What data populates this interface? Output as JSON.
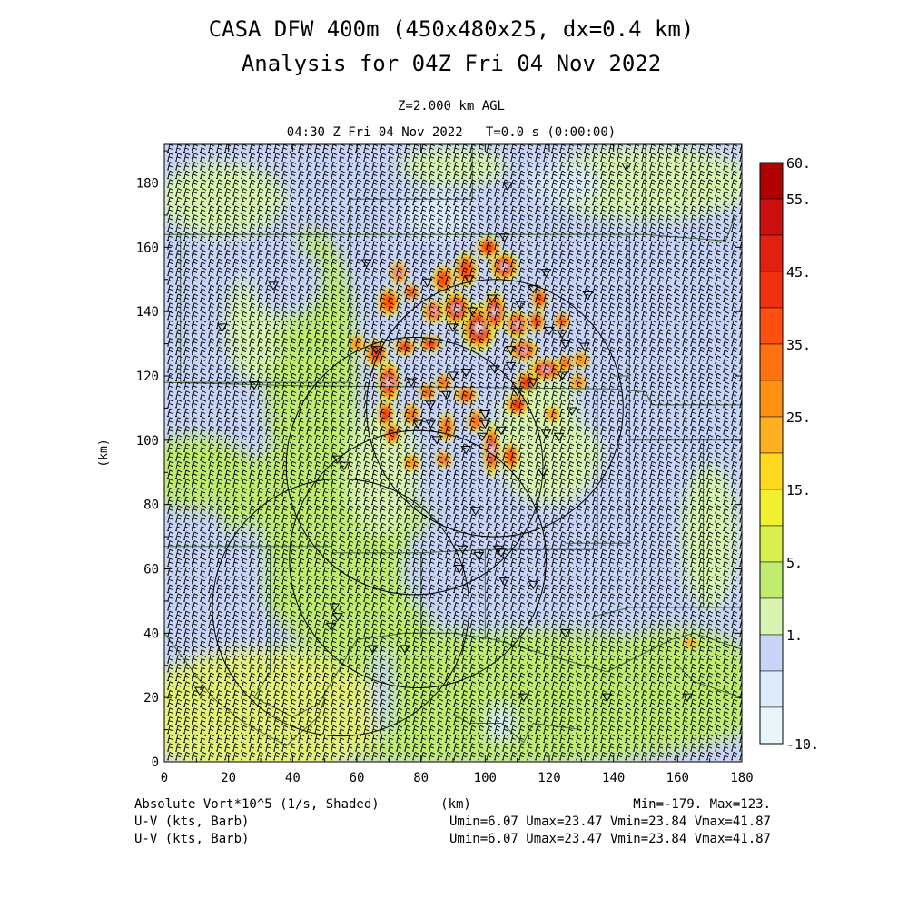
{
  "chart_data": {
    "type": "heatmap",
    "title_line1": "CASA DFW 400m (450x480x25, dx=0.4 km)",
    "title_line2": "Analysis for 04Z Fri 04 Nov 2022",
    "level_label": "Z=2.000 km AGL",
    "time_label": "04:30 Z Fri 04 Nov 2022   T=0.0 s (0:00:00)",
    "xlabel": "(km)",
    "ylabel": "(km)",
    "xlim": [
      0,
      180
    ],
    "ylim": [
      0,
      192
    ],
    "x_ticks": [
      "0",
      "20",
      "40",
      "60",
      "80",
      "100",
      "120",
      "140",
      "160",
      "180"
    ],
    "y_ticks": [
      "0",
      "20",
      "40",
      "60",
      "80",
      "100",
      "120",
      "140",
      "160",
      "180"
    ],
    "colorbar": {
      "labels": [
        "60.",
        "55.",
        "45.",
        "35.",
        "25.",
        "15.",
        "5.",
        "1.",
        "-10."
      ],
      "levels": [
        60,
        55,
        50,
        45,
        40,
        35,
        30,
        25,
        20,
        15,
        10,
        5,
        3,
        1,
        0,
        -10
      ],
      "colors": [
        "#b00000",
        "#cc1010",
        "#e02010",
        "#f03010",
        "#ff5010",
        "#ff7010",
        "#ff9010",
        "#ffb020",
        "#ffd820",
        "#f0f030",
        "#d8f050",
        "#c0ec70",
        "#d8f4b0",
        "#c8d4f8",
        "#dcecfc",
        "#e8f6fc"
      ]
    },
    "field_label": "Absolute Vort*10^5 (1/s, Shaded)",
    "field_range": "Min=-179. Max=123.",
    "vector_label_1": "U-V (kts, Barb)",
    "vector_range_1": "Umin=6.07 Umax=23.47 Vmin=23.84 Vmax=41.87",
    "vector_label_2": "U-V (kts, Barb)",
    "vector_range_2": "Umin=6.07 Umax=23.47 Vmin=23.84 Vmax=41.87",
    "bottom_axis_label": "(km)",
    "radar_rings": [
      {
        "cx": 103,
        "cy": 110,
        "r": 40
      },
      {
        "cx": 78,
        "cy": 92,
        "r": 40
      },
      {
        "cx": 79,
        "cy": 63,
        "r": 40
      },
      {
        "cx": 55,
        "cy": 48,
        "r": 40
      }
    ],
    "stations_xy": [
      [
        18,
        135
      ],
      [
        34,
        148
      ],
      [
        90,
        195
      ],
      [
        107,
        179
      ],
      [
        144,
        185
      ],
      [
        63,
        155
      ],
      [
        106,
        163
      ],
      [
        82,
        149
      ],
      [
        95,
        150
      ],
      [
        96,
        140
      ],
      [
        102,
        144
      ],
      [
        111,
        142
      ],
      [
        119,
        152
      ],
      [
        132,
        145
      ],
      [
        115,
        147
      ],
      [
        124,
        133
      ],
      [
        90,
        135
      ],
      [
        90,
        120
      ],
      [
        94,
        121
      ],
      [
        88,
        114
      ],
      [
        83,
        111
      ],
      [
        77,
        118
      ],
      [
        79,
        105
      ],
      [
        83,
        105
      ],
      [
        100,
        105
      ],
      [
        105,
        103
      ],
      [
        119,
        102
      ],
      [
        127,
        109
      ],
      [
        115,
        118
      ],
      [
        131,
        129
      ],
      [
        124,
        120
      ],
      [
        125,
        130
      ],
      [
        108,
        123
      ],
      [
        123,
        101
      ],
      [
        118,
        90
      ],
      [
        54,
        94
      ],
      [
        56,
        92
      ],
      [
        99,
        101
      ],
      [
        100,
        108
      ],
      [
        85,
        100
      ],
      [
        94,
        97
      ],
      [
        97,
        78
      ],
      [
        93,
        66
      ],
      [
        98,
        64
      ],
      [
        105,
        65
      ],
      [
        92,
        60
      ],
      [
        115,
        55
      ],
      [
        106,
        56
      ],
      [
        125,
        40
      ],
      [
        53,
        48
      ],
      [
        54,
        45
      ],
      [
        52,
        42
      ],
      [
        65,
        35
      ],
      [
        75,
        35
      ],
      [
        28,
        117
      ],
      [
        112,
        20
      ],
      [
        138,
        20
      ],
      [
        163,
        20
      ],
      [
        11,
        22
      ],
      [
        104,
        66
      ],
      [
        103,
        122
      ],
      [
        108,
        128
      ],
      [
        120,
        134
      ],
      [
        66,
        128
      ],
      [
        110,
        115
      ]
    ],
    "vorticity_max": [
      {
        "x": 98,
        "y": 135,
        "v": 60,
        "rx": 5,
        "ry": 7
      },
      {
        "x": 106,
        "y": 154,
        "v": 58,
        "rx": 4,
        "ry": 4
      },
      {
        "x": 101,
        "y": 160,
        "v": 48,
        "rx": 3,
        "ry": 3
      },
      {
        "x": 94,
        "y": 153,
        "v": 42,
        "rx": 3,
        "ry": 5
      },
      {
        "x": 87,
        "y": 150,
        "v": 40,
        "rx": 3,
        "ry": 4
      },
      {
        "x": 73,
        "y": 152,
        "v": 52,
        "rx": 2,
        "ry": 3
      },
      {
        "x": 77,
        "y": 146,
        "v": 45,
        "rx": 2,
        "ry": 2
      },
      {
        "x": 70,
        "y": 143,
        "v": 42,
        "rx": 3,
        "ry": 4
      },
      {
        "x": 84,
        "y": 140,
        "v": 52,
        "rx": 3,
        "ry": 3
      },
      {
        "x": 91,
        "y": 141,
        "v": 56,
        "rx": 4,
        "ry": 5
      },
      {
        "x": 103,
        "y": 140,
        "v": 55,
        "rx": 3,
        "ry": 6
      },
      {
        "x": 110,
        "y": 136,
        "v": 50,
        "rx": 3,
        "ry": 4
      },
      {
        "x": 117,
        "y": 144,
        "v": 48,
        "rx": 2,
        "ry": 3
      },
      {
        "x": 116,
        "y": 137,
        "v": 48,
        "rx": 2,
        "ry": 3
      },
      {
        "x": 124,
        "y": 137,
        "v": 40,
        "rx": 2,
        "ry": 2
      },
      {
        "x": 112,
        "y": 128,
        "v": 50,
        "rx": 4,
        "ry": 3
      },
      {
        "x": 119,
        "y": 122,
        "v": 55,
        "rx": 5,
        "ry": 3
      },
      {
        "x": 113,
        "y": 118,
        "v": 48,
        "rx": 3,
        "ry": 3
      },
      {
        "x": 110,
        "y": 111,
        "v": 48,
        "rx": 3,
        "ry": 3
      },
      {
        "x": 125,
        "y": 124,
        "v": 38,
        "rx": 2,
        "ry": 2
      },
      {
        "x": 130,
        "y": 125,
        "v": 30,
        "rx": 2,
        "ry": 2
      },
      {
        "x": 129,
        "y": 118,
        "v": 30,
        "rx": 2,
        "ry": 2
      },
      {
        "x": 83,
        "y": 130,
        "v": 48,
        "rx": 3,
        "ry": 2
      },
      {
        "x": 75,
        "y": 129,
        "v": 45,
        "rx": 3,
        "ry": 2
      },
      {
        "x": 66,
        "y": 127,
        "v": 42,
        "rx": 3,
        "ry": 4
      },
      {
        "x": 70,
        "y": 118,
        "v": 50,
        "rx": 3,
        "ry": 6
      },
      {
        "x": 69,
        "y": 108,
        "v": 45,
        "rx": 2,
        "ry": 4
      },
      {
        "x": 71,
        "y": 102,
        "v": 45,
        "rx": 2,
        "ry": 3
      },
      {
        "x": 77,
        "y": 108,
        "v": 35,
        "rx": 2,
        "ry": 3
      },
      {
        "x": 82,
        "y": 115,
        "v": 40,
        "rx": 2,
        "ry": 2
      },
      {
        "x": 87,
        "y": 118,
        "v": 38,
        "rx": 2,
        "ry": 2
      },
      {
        "x": 94,
        "y": 114,
        "v": 40,
        "rx": 3,
        "ry": 2
      },
      {
        "x": 88,
        "y": 104,
        "v": 35,
        "rx": 2,
        "ry": 4
      },
      {
        "x": 97,
        "y": 106,
        "v": 38,
        "rx": 2,
        "ry": 3
      },
      {
        "x": 102,
        "y": 97,
        "v": 55,
        "rx": 2,
        "ry": 8
      },
      {
        "x": 108,
        "y": 95,
        "v": 40,
        "rx": 2,
        "ry": 4
      },
      {
        "x": 87,
        "y": 94,
        "v": 35,
        "rx": 2,
        "ry": 2
      },
      {
        "x": 77,
        "y": 93,
        "v": 30,
        "rx": 2,
        "ry": 2
      },
      {
        "x": 121,
        "y": 108,
        "v": 30,
        "rx": 2,
        "ry": 2
      },
      {
        "x": 60,
        "y": 130,
        "v": 32,
        "rx": 2,
        "ry": 2
      },
      {
        "x": 164,
        "y": 37,
        "v": 28,
        "rx": 2,
        "ry": 1
      }
    ]
  }
}
